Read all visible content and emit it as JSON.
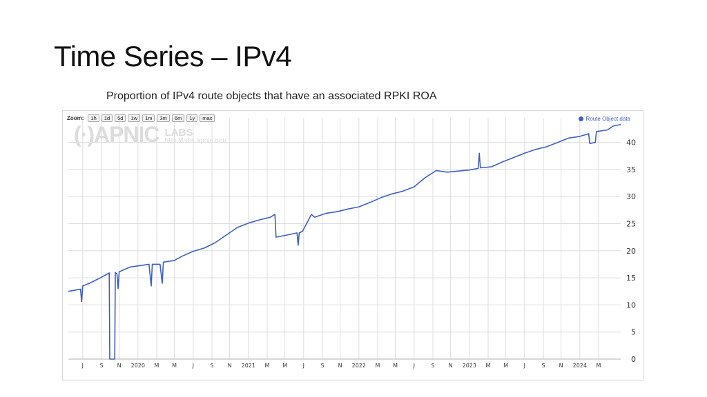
{
  "slide": {
    "title": "Time Series – IPv4",
    "subtitle": "Proportion of IPv4 route objects that have an associated RPKI ROA"
  },
  "toolbar": {
    "zoom_label": "Zoom:",
    "buttons": [
      "1h",
      "1d",
      "5d",
      "1w",
      "1m",
      "3m",
      "6m",
      "1y",
      "max"
    ]
  },
  "watermark": {
    "logo": "(·)APNIC",
    "labs": "LABS",
    "url": "http://labs.apnic.net/"
  },
  "colors": {
    "series": "#3b5fc8",
    "grid": "#dddddd"
  },
  "chart_data": {
    "type": "line",
    "title": "",
    "xlabel": "",
    "ylabel": "",
    "ylim": [
      0,
      43
    ],
    "yaxis_side": "right",
    "grid": true,
    "legend_position": "top-right",
    "y_ticks": [
      0,
      5,
      10,
      15,
      20,
      25,
      30,
      35,
      40
    ],
    "x_ticks": [
      {
        "t": 2019.5,
        "label": "J"
      },
      {
        "t": 2019.67,
        "label": "S"
      },
      {
        "t": 2019.83,
        "label": "N"
      },
      {
        "t": 2020.0,
        "label": "2020"
      },
      {
        "t": 2020.17,
        "label": "M"
      },
      {
        "t": 2020.33,
        "label": "M"
      },
      {
        "t": 2020.5,
        "label": "J"
      },
      {
        "t": 2020.67,
        "label": "S"
      },
      {
        "t": 2020.83,
        "label": "N"
      },
      {
        "t": 2021.0,
        "label": "2021"
      },
      {
        "t": 2021.17,
        "label": "M"
      },
      {
        "t": 2021.33,
        "label": "M"
      },
      {
        "t": 2021.5,
        "label": "J"
      },
      {
        "t": 2021.67,
        "label": "S"
      },
      {
        "t": 2021.83,
        "label": "N"
      },
      {
        "t": 2022.0,
        "label": "2022"
      },
      {
        "t": 2022.17,
        "label": "M"
      },
      {
        "t": 2022.33,
        "label": "M"
      },
      {
        "t": 2022.5,
        "label": "J"
      },
      {
        "t": 2022.67,
        "label": "S"
      },
      {
        "t": 2022.83,
        "label": "N"
      },
      {
        "t": 2023.0,
        "label": "2023"
      },
      {
        "t": 2023.17,
        "label": "M"
      },
      {
        "t": 2023.33,
        "label": "M"
      },
      {
        "t": 2023.5,
        "label": "J"
      },
      {
        "t": 2023.67,
        "label": "S"
      },
      {
        "t": 2023.83,
        "label": "N"
      },
      {
        "t": 2024.0,
        "label": "2024"
      },
      {
        "t": 2024.17,
        "label": "M"
      }
    ],
    "xlim": [
      2019.37,
      2024.37
    ],
    "series": [
      {
        "name": "Route Object data",
        "points": [
          [
            2019.37,
            12.5
          ],
          [
            2019.48,
            12.9
          ],
          [
            2019.49,
            10.6
          ],
          [
            2019.5,
            13.5
          ],
          [
            2019.56,
            14.0
          ],
          [
            2019.66,
            15.0
          ],
          [
            2019.74,
            15.9
          ],
          [
            2019.745,
            0.0
          ],
          [
            2019.79,
            0.0
          ],
          [
            2019.795,
            16.0
          ],
          [
            2019.81,
            15.7
          ],
          [
            2019.82,
            13.0
          ],
          [
            2019.83,
            16.1
          ],
          [
            2019.93,
            17.0
          ],
          [
            2020.0,
            17.2
          ],
          [
            2020.1,
            17.5
          ],
          [
            2020.12,
            13.5
          ],
          [
            2020.13,
            17.5
          ],
          [
            2020.2,
            17.5
          ],
          [
            2020.22,
            14.0
          ],
          [
            2020.23,
            17.9
          ],
          [
            2020.33,
            18.2
          ],
          [
            2020.4,
            19.0
          ],
          [
            2020.5,
            19.9
          ],
          [
            2020.6,
            20.5
          ],
          [
            2020.7,
            21.5
          ],
          [
            2020.8,
            22.9
          ],
          [
            2020.9,
            24.3
          ],
          [
            2021.0,
            25.1
          ],
          [
            2021.1,
            25.7
          ],
          [
            2021.2,
            26.2
          ],
          [
            2021.24,
            26.7
          ],
          [
            2021.25,
            22.5
          ],
          [
            2021.35,
            22.9
          ],
          [
            2021.44,
            23.3
          ],
          [
            2021.45,
            21.0
          ],
          [
            2021.46,
            23.3
          ],
          [
            2021.49,
            23.6
          ],
          [
            2021.57,
            26.7
          ],
          [
            2021.6,
            26.2
          ],
          [
            2021.7,
            26.9
          ],
          [
            2021.8,
            27.2
          ],
          [
            2021.9,
            27.7
          ],
          [
            2022.0,
            28.1
          ],
          [
            2022.1,
            28.9
          ],
          [
            2022.2,
            29.8
          ],
          [
            2022.3,
            30.5
          ],
          [
            2022.4,
            31.0
          ],
          [
            2022.5,
            31.8
          ],
          [
            2022.6,
            33.5
          ],
          [
            2022.7,
            34.8
          ],
          [
            2022.8,
            34.5
          ],
          [
            2022.9,
            34.7
          ],
          [
            2023.0,
            34.9
          ],
          [
            2023.08,
            35.2
          ],
          [
            2023.09,
            38.0
          ],
          [
            2023.1,
            35.3
          ],
          [
            2023.2,
            35.5
          ],
          [
            2023.3,
            36.4
          ],
          [
            2023.4,
            37.2
          ],
          [
            2023.5,
            38.0
          ],
          [
            2023.6,
            38.7
          ],
          [
            2023.7,
            39.2
          ],
          [
            2023.8,
            40.0
          ],
          [
            2023.9,
            40.8
          ],
          [
            2024.0,
            41.1
          ],
          [
            2024.08,
            41.6
          ],
          [
            2024.09,
            39.8
          ],
          [
            2024.14,
            40.0
          ],
          [
            2024.15,
            42.0
          ],
          [
            2024.25,
            42.3
          ],
          [
            2024.3,
            43.0
          ],
          [
            2024.37,
            43.3
          ]
        ]
      }
    ]
  }
}
